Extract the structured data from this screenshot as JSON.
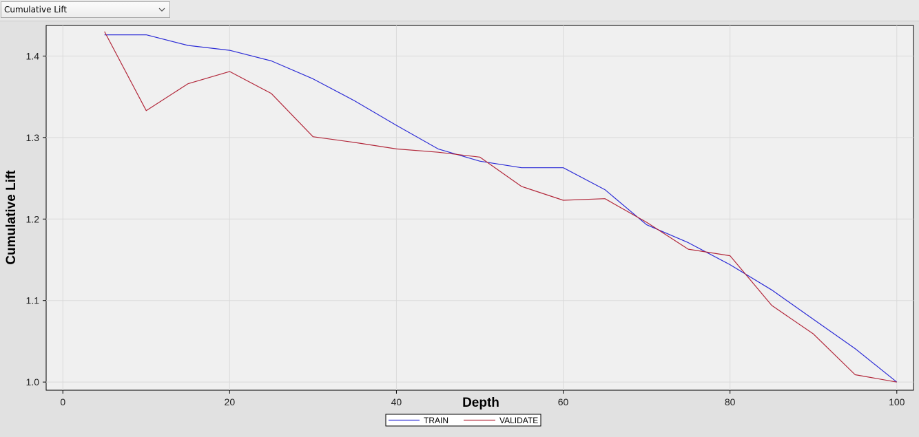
{
  "toolbar": {
    "selected_statistic": "Cumulative Lift",
    "dropdown_icon": "chevron-down-icon"
  },
  "colors": {
    "train": "#2b2bd6",
    "validate": "#b2273a",
    "plot_bg": "#f0f0f0",
    "grid": "#dadada"
  },
  "chart_data": {
    "type": "line",
    "title": "",
    "xlabel": "Depth",
    "ylabel": "Cumulative Lift",
    "xlim": [
      -2,
      102
    ],
    "ylim": [
      0.99,
      1.4375
    ],
    "xticks": [
      0,
      20,
      40,
      60,
      80,
      100
    ],
    "yticks": [
      1.0,
      1.1,
      1.2,
      1.3,
      1.4
    ],
    "ytick_labels": [
      "1.0",
      "1.1",
      "1.2",
      "1.3",
      "1.4"
    ],
    "grid": true,
    "legend_position": "bottom-center",
    "x": [
      5,
      10,
      15,
      20,
      25,
      30,
      35,
      40,
      45,
      50,
      55,
      60,
      65,
      70,
      75,
      80,
      85,
      90,
      95,
      100
    ],
    "series": [
      {
        "name": "TRAIN",
        "values": [
          1.426,
          1.426,
          1.413,
          1.407,
          1.394,
          1.372,
          1.345,
          1.315,
          1.286,
          1.271,
          1.263,
          1.263,
          1.236,
          1.193,
          1.171,
          1.144,
          1.113,
          1.077,
          1.041,
          1.0
        ]
      },
      {
        "name": "VALIDATE",
        "values": [
          1.43,
          1.333,
          1.366,
          1.381,
          1.354,
          1.301,
          1.294,
          1.286,
          1.282,
          1.276,
          1.24,
          1.223,
          1.225,
          1.196,
          1.163,
          1.155,
          1.094,
          1.059,
          1.009,
          1.0
        ]
      }
    ]
  }
}
